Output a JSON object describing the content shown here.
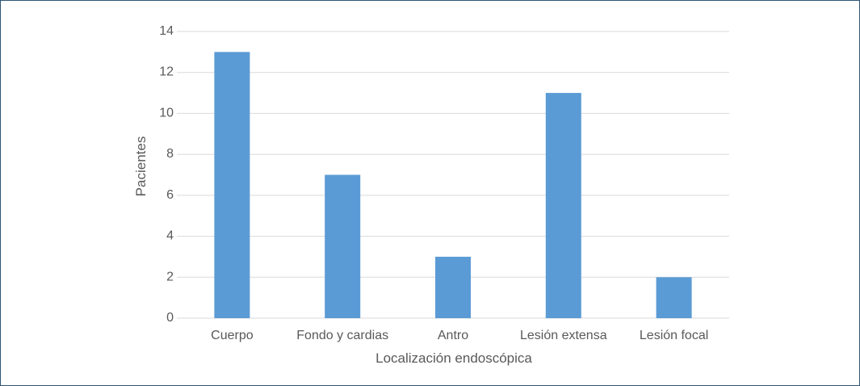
{
  "chart_data": {
    "type": "bar",
    "title": "",
    "xlabel": "Localización endoscópica",
    "ylabel": "Pacientes",
    "categories": [
      "Cuerpo",
      "Fondo y cardias",
      "Antro",
      "Lesión extensa",
      "Lesión focal"
    ],
    "values": [
      13,
      7,
      3,
      11,
      2
    ],
    "ylim": [
      0,
      14
    ],
    "yticks": [
      "0",
      "2",
      "4",
      "6",
      "8",
      "10",
      "12",
      "14"
    ],
    "grid": true,
    "legend": "none",
    "bar_color": "#5b9bd5",
    "grid_color": "#d9d9d9",
    "text_color": "#595959",
    "border_color": "#2f5675"
  }
}
